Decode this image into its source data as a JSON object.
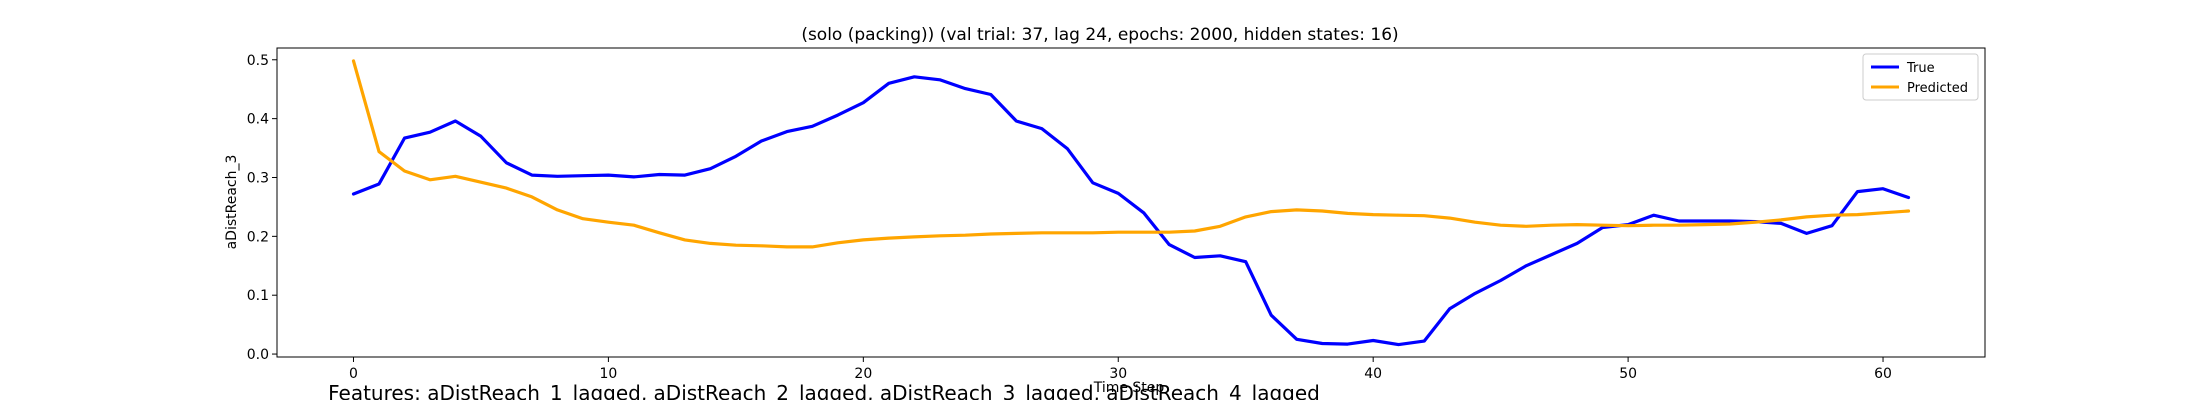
{
  "figure": {
    "caption": "Features: aDistReach_1_lagged, aDistReach_2_lagged, aDistReach_3_lagged, aDistReach_4_lagged"
  },
  "chart_data": {
    "type": "line",
    "title": "(solo (packing)) (val trial: 37, lag 24, epochs: 2000, hidden states: 16)",
    "xlabel": "Time Step",
    "ylabel": "aDistReach_3",
    "xlim": [
      -3,
      64
    ],
    "ylim": [
      -0.005,
      0.52
    ],
    "xticks": [
      0,
      10,
      20,
      30,
      40,
      50,
      60
    ],
    "yticks": [
      0.0,
      0.1,
      0.2,
      0.3,
      0.4,
      0.5
    ],
    "ytick_labels": [
      "0.0",
      "0.1",
      "0.2",
      "0.3",
      "0.4",
      "0.5"
    ],
    "grid": false,
    "legend_position": "top-right",
    "x": [
      0,
      1,
      2,
      3,
      4,
      5,
      6,
      7,
      8,
      9,
      10,
      11,
      12,
      13,
      14,
      15,
      16,
      17,
      18,
      19,
      20,
      21,
      22,
      23,
      24,
      25,
      26,
      27,
      28,
      29,
      30,
      31,
      32,
      33,
      34,
      35,
      36,
      37,
      38,
      39,
      40,
      41,
      42,
      43,
      44,
      45,
      46,
      47,
      48,
      49,
      50,
      51,
      52,
      53,
      54,
      55,
      56,
      57,
      58,
      59,
      60,
      61
    ],
    "series": [
      {
        "name": "True",
        "color": "#0000ff",
        "values": [
          0.272,
          0.289,
          0.367,
          0.377,
          0.396,
          0.37,
          0.325,
          0.304,
          0.302,
          0.303,
          0.304,
          0.301,
          0.305,
          0.304,
          0.315,
          0.336,
          0.362,
          0.378,
          0.387,
          0.406,
          0.427,
          0.46,
          0.471,
          0.466,
          0.451,
          0.441,
          0.396,
          0.383,
          0.349,
          0.291,
          0.273,
          0.24,
          0.186,
          0.164,
          0.167,
          0.157,
          0.066,
          0.025,
          0.018,
          0.017,
          0.023,
          0.016,
          0.022,
          0.077,
          0.103,
          0.125,
          0.15,
          0.169,
          0.188,
          0.215,
          0.22,
          0.236,
          0.226,
          0.226,
          0.226,
          0.225,
          0.222,
          0.205,
          0.218,
          0.276,
          0.281,
          0.266
        ]
      },
      {
        "name": "Predicted",
        "color": "#ffa500",
        "values": [
          0.498,
          0.344,
          0.311,
          0.296,
          0.302,
          0.292,
          0.282,
          0.267,
          0.245,
          0.23,
          0.224,
          0.219,
          0.206,
          0.194,
          0.188,
          0.185,
          0.184,
          0.182,
          0.182,
          0.189,
          0.194,
          0.197,
          0.199,
          0.201,
          0.202,
          0.204,
          0.205,
          0.206,
          0.206,
          0.206,
          0.207,
          0.207,
          0.207,
          0.209,
          0.217,
          0.233,
          0.242,
          0.245,
          0.243,
          0.239,
          0.237,
          0.236,
          0.235,
          0.231,
          0.224,
          0.219,
          0.217,
          0.219,
          0.22,
          0.219,
          0.218,
          0.219,
          0.219,
          0.22,
          0.221,
          0.224,
          0.228,
          0.233,
          0.236,
          0.237,
          0.24,
          0.243
        ]
      }
    ]
  }
}
